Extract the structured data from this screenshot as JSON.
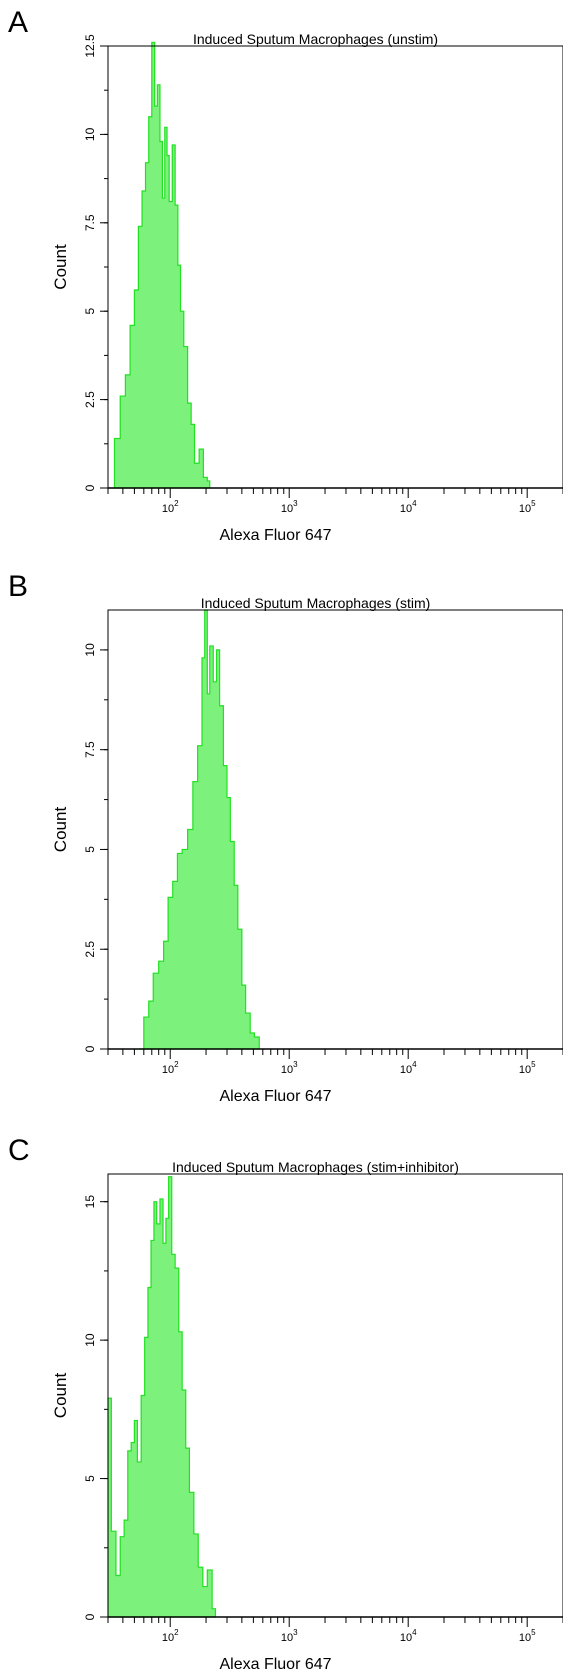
{
  "chart_data": [
    {
      "type": "histogram",
      "panel_label": "A",
      "title": "Induced Sputum Macrophages (unstim)",
      "xlabel": "Alexa Fluor 647",
      "ylabel": "Count",
      "x_scale": "log",
      "xlim": [
        30,
        200000
      ],
      "ylim": [
        0,
        12.5
      ],
      "yticks": [
        0,
        2.5,
        5,
        7.5,
        10,
        12.5
      ],
      "ytick_labels": [
        "0",
        "2.5",
        "5",
        "7.5",
        "10",
        "12.5"
      ],
      "xticks": [
        100,
        1000,
        10000,
        100000
      ],
      "xtick_labels": [
        [
          "10",
          "2"
        ],
        [
          "10",
          "3"
        ],
        [
          "10",
          "4"
        ],
        [
          "10",
          "5"
        ]
      ],
      "color": "#7cf27c",
      "series": [
        {
          "x": [
            30,
            34,
            38,
            42,
            46,
            50,
            54,
            58,
            62,
            66,
            70,
            74,
            78,
            82,
            86,
            90,
            94,
            98,
            104,
            110,
            116,
            122,
            130,
            140,
            150,
            160,
            175,
            190,
            205,
            215
          ],
          "y": [
            0,
            1.4,
            2.6,
            3.2,
            4.6,
            5.6,
            7.4,
            8.4,
            9.2,
            10.5,
            12.6,
            10.8,
            11.4,
            9.8,
            8.2,
            10.2,
            9.4,
            8.1,
            9.7,
            8.0,
            6.3,
            5.0,
            4.0,
            2.4,
            1.8,
            0.7,
            1.1,
            0.3,
            0.2,
            0
          ]
        }
      ]
    },
    {
      "type": "histogram",
      "panel_label": "B",
      "title": "Induced Sputum Macrophages (stim)",
      "xlabel": "Alexa Fluor 647",
      "ylabel": "Count",
      "x_scale": "log",
      "xlim": [
        30,
        200000
      ],
      "ylim": [
        0,
        11
      ],
      "yticks": [
        0,
        2.5,
        5,
        7.5,
        10
      ],
      "ytick_labels": [
        "0",
        "2.5",
        "5",
        "7.5",
        "10"
      ],
      "xticks": [
        100,
        1000,
        10000,
        100000
      ],
      "xtick_labels": [
        [
          "10",
          "2"
        ],
        [
          "10",
          "3"
        ],
        [
          "10",
          "4"
        ],
        [
          "10",
          "5"
        ]
      ],
      "color": "#7cf27c",
      "series": [
        {
          "x": [
            55,
            60,
            66,
            72,
            80,
            88,
            96,
            105,
            115,
            126,
            140,
            155,
            170,
            185,
            195,
            205,
            215,
            230,
            245,
            260,
            280,
            300,
            320,
            345,
            370,
            400,
            430,
            470,
            510,
            560
          ],
          "y": [
            0,
            0.8,
            1.2,
            1.9,
            2.2,
            2.7,
            3.8,
            4.2,
            4.9,
            5.0,
            5.5,
            6.7,
            7.6,
            9.8,
            11.0,
            8.9,
            10.1,
            9.2,
            10.0,
            8.6,
            7.1,
            6.3,
            5.2,
            4.1,
            3.0,
            1.6,
            0.9,
            0.4,
            0.3,
            0
          ]
        }
      ]
    },
    {
      "type": "histogram",
      "panel_label": "C",
      "title": "Induced Sputum Macrophages (stim+inhibitor)",
      "xlabel": "Alexa Fluor 647",
      "ylabel": "Count",
      "x_scale": "log",
      "xlim": [
        30,
        200000
      ],
      "ylim": [
        0,
        16
      ],
      "yticks": [
        0,
        5,
        10,
        15
      ],
      "ytick_labels": [
        "0",
        "5",
        "10",
        "15"
      ],
      "xticks": [
        100,
        1000,
        10000,
        100000
      ],
      "xtick_labels": [
        [
          "10",
          "2"
        ],
        [
          "10",
          "3"
        ],
        [
          "10",
          "4"
        ],
        [
          "10",
          "5"
        ]
      ],
      "color": "#7cf27c",
      "series": [
        {
          "x": [
            30,
            32,
            35,
            38,
            41,
            44,
            47,
            50,
            53,
            57,
            61,
            65,
            69,
            73,
            77,
            82,
            87,
            92,
            97,
            103,
            110,
            118,
            126,
            135,
            145,
            158,
            172,
            188,
            205,
            225,
            240
          ],
          "y": [
            7.9,
            3.1,
            1.5,
            2.9,
            3.5,
            6.0,
            6.3,
            7.1,
            5.6,
            8.0,
            10.1,
            11.9,
            13.6,
            15.0,
            14.2,
            15.1,
            13.5,
            14.4,
            15.9,
            13.1,
            12.6,
            10.3,
            8.2,
            6.1,
            4.5,
            3.0,
            1.8,
            1.1,
            1.7,
            0.3,
            0
          ]
        }
      ]
    }
  ]
}
